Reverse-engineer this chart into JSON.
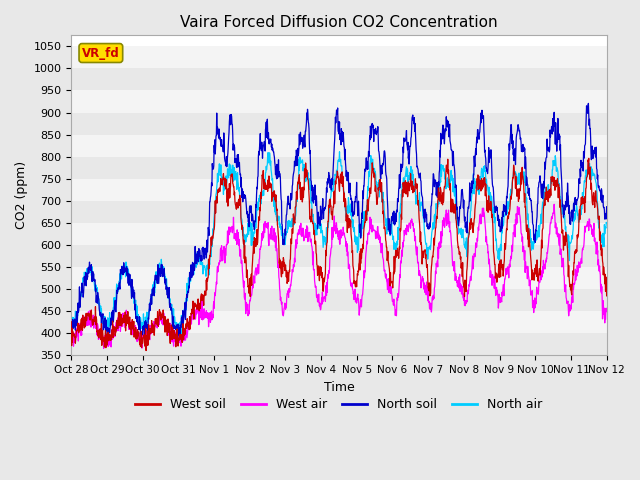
{
  "title": "Vaira Forced Diffusion CO2 Concentration",
  "xlabel": "Time",
  "ylabel": "CO2 (ppm)",
  "ylim": [
    350,
    1075
  ],
  "yticks": [
    350,
    400,
    450,
    500,
    550,
    600,
    650,
    700,
    750,
    800,
    850,
    900,
    950,
    1000,
    1050
  ],
  "xtick_labels": [
    "Oct 28",
    "Oct 29",
    "Oct 30",
    "Oct 31",
    "Nov 1",
    "Nov 2",
    "Nov 3",
    "Nov 4",
    "Nov 5",
    "Nov 6",
    "Nov 7",
    "Nov 8",
    "Nov 9",
    "Nov 10",
    "Nov 11",
    "Nov 12"
  ],
  "legend_labels": [
    "West soil",
    "West air",
    "North soil",
    "North air"
  ],
  "series_colors": [
    "#cc0000",
    "#ff00ff",
    "#0000cc",
    "#00ccff"
  ],
  "vr_fd_label": "VR_fd",
  "vr_fd_bg": "#ffdd00",
  "vr_fd_border": "#888800",
  "background_color": "#e8e8e8",
  "plot_bg_color": "#ffffff",
  "band_color_light": "#e8e8e8",
  "band_color_white": "#f4f4f4",
  "n_days": 15,
  "pts_per_day": 96,
  "seed": 12345
}
